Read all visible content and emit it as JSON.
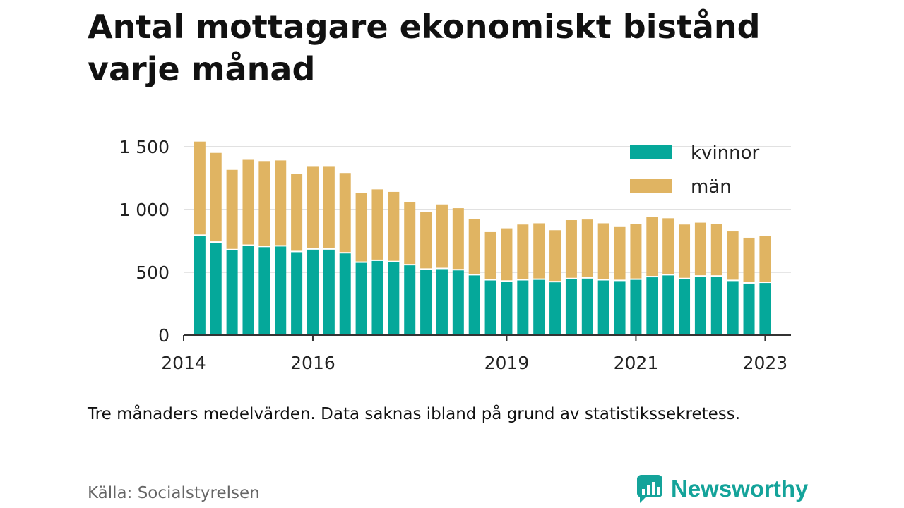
{
  "title": "Antal mottagare ekonomiskt bistånd varje månad",
  "note": "Tre månaders medelvärden. Data saknas ibland på grund av statistikssekretess.",
  "source": "Källa: Socialstyrelsen",
  "brand": {
    "name": "Newsworthy",
    "icon": "newsworthy-logo-icon"
  },
  "colors": {
    "women": "#05a89a",
    "men": "#e0b462",
    "grid": "#dddddd",
    "axis": "#333333"
  },
  "chart_data": {
    "type": "bar",
    "stacked": true,
    "legend_position": "top-right",
    "grid": true,
    "ylim": [
      0,
      1600
    ],
    "yticks": [
      {
        "value": 0,
        "label": "0"
      },
      {
        "value": 500,
        "label": "500"
      },
      {
        "value": 1000,
        "label": "1 000"
      },
      {
        "value": 1500,
        "label": "1 500"
      }
    ],
    "xlim": [
      2014.0,
      2023.4
    ],
    "xticks": [
      {
        "value": 2014,
        "label": "2014"
      },
      {
        "value": 2016,
        "label": "2016"
      },
      {
        "value": 2019,
        "label": "2019"
      },
      {
        "value": 2021,
        "label": "2021"
      },
      {
        "value": 2023,
        "label": "2023"
      }
    ],
    "x": [
      2014.25,
      2014.5,
      2014.75,
      2015.0,
      2015.25,
      2015.5,
      2015.75,
      2016.0,
      2016.25,
      2016.5,
      2016.75,
      2017.0,
      2017.25,
      2017.5,
      2017.75,
      2018.0,
      2018.25,
      2018.5,
      2018.75,
      2019.0,
      2019.25,
      2019.5,
      2019.75,
      2020.0,
      2020.25,
      2020.5,
      2020.75,
      2021.0,
      2021.25,
      2021.5,
      2021.75,
      2022.0,
      2022.25,
      2022.5,
      2022.75,
      2023.0
    ],
    "series": [
      {
        "name": "kvinnor",
        "values": [
          790,
          735,
          675,
          710,
          700,
          705,
          660,
          680,
          680,
          650,
          575,
          590,
          580,
          555,
          520,
          525,
          515,
          475,
          435,
          425,
          435,
          440,
          420,
          445,
          450,
          435,
          430,
          440,
          460,
          475,
          445,
          465,
          465,
          430,
          410,
          415
        ]
      },
      {
        "name": "män",
        "values": [
          750,
          715,
          640,
          685,
          685,
          685,
          620,
          665,
          665,
          640,
          555,
          570,
          560,
          505,
          460,
          515,
          495,
          450,
          385,
          425,
          445,
          450,
          415,
          470,
          470,
          455,
          430,
          445,
          480,
          455,
          435,
          430,
          420,
          395,
          365,
          375
        ]
      }
    ]
  }
}
